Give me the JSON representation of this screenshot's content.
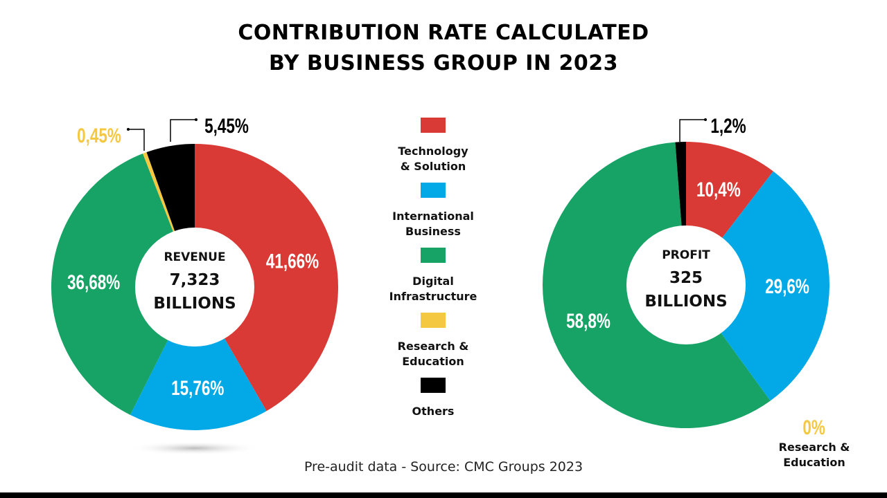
{
  "title_line1": "CONTRIBUTION RATE CALCULATED",
  "title_line2": "BY BUSINESS GROUP IN 2023",
  "source": "Pre-audit data - Source: CMC Groups 2023",
  "legend": [
    {
      "label1": "Technology",
      "label2": "& Solution",
      "color": "#d93a35"
    },
    {
      "label1": "International",
      "label2": "Business",
      "color": "#03a9e6"
    },
    {
      "label1": "Digital",
      "label2": "Infrastructure",
      "color": "#17a366"
    },
    {
      "label1": "Research &",
      "label2": "Education",
      "color": "#f5c842"
    },
    {
      "label1": "Others",
      "label2": "",
      "color": "#000000"
    }
  ],
  "chart_data": [
    {
      "type": "pie",
      "variant": "donut",
      "center_label": [
        "REVENUE",
        "7,323",
        "BILLIONS"
      ],
      "categories": [
        "Technology & Solution",
        "International Business",
        "Digital Infrastructure",
        "Research & Education",
        "Others"
      ],
      "values": [
        41.66,
        15.76,
        36.68,
        0.45,
        5.45
      ],
      "labels": [
        "41,66%",
        "15,76%",
        "36,68%",
        "0,45%",
        "5,45%"
      ],
      "colors": [
        "#d93a35",
        "#03a9e6",
        "#17a366",
        "#f5c842",
        "#000000"
      ]
    },
    {
      "type": "pie",
      "variant": "donut",
      "center_label": [
        "PROFIT",
        "325",
        "BILLIONS"
      ],
      "categories": [
        "Technology & Solution",
        "International Business",
        "Digital Infrastructure",
        "Research & Education",
        "Others"
      ],
      "values": [
        10.4,
        29.6,
        58.8,
        0,
        1.2
      ],
      "labels": [
        "10,4%",
        "29,6%",
        "58,8%",
        "0%",
        "1,2%"
      ],
      "colors": [
        "#d93a35",
        "#03a9e6",
        "#17a366",
        "#f5c842",
        "#000000"
      ]
    }
  ],
  "zero_note": {
    "label1": "Research &",
    "label2": "Education"
  }
}
